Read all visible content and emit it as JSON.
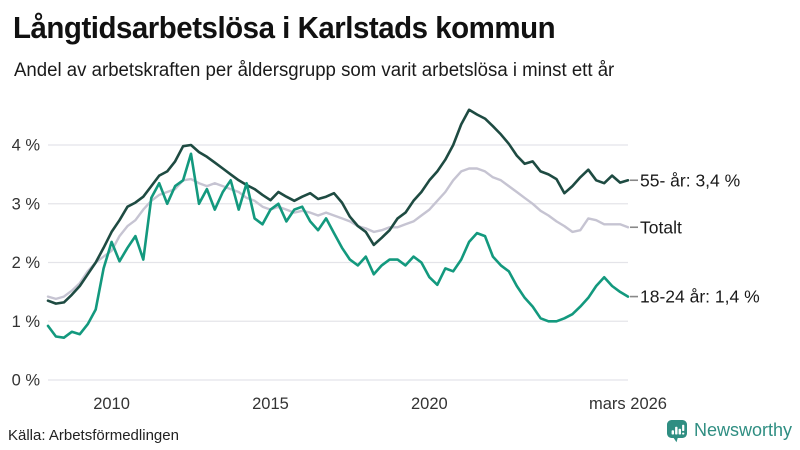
{
  "chart_data": {
    "type": "line",
    "title": "Långtidsarbetslösa i Karlstads kommun",
    "subtitle": "Andel av arbetskraften per åldersgrupp som varit arbetslösa i minst ett år",
    "source": "Källa: Arbetsförmedlingen",
    "brand": "Newsworthy",
    "xlabel": "",
    "ylabel": "",
    "x_start": 2008,
    "x_step": 0.25,
    "xlim": [
      2008,
      2026.35
    ],
    "ylim": [
      0,
      4.8
    ],
    "grid": true,
    "legend_position": "right-of-line-ends",
    "x_ticks": [
      {
        "x": 2010,
        "label": "2010"
      },
      {
        "x": 2015,
        "label": "2015"
      },
      {
        "x": 2020,
        "label": "2020"
      },
      {
        "x": 2026.25,
        "label": "mars 2026"
      }
    ],
    "y_ticks": [
      {
        "v": 0,
        "label": "0 %"
      },
      {
        "v": 1,
        "label": "1 %"
      },
      {
        "v": 2,
        "label": "2 %"
      },
      {
        "v": 3,
        "label": "3 %"
      },
      {
        "v": 4,
        "label": "4 %"
      }
    ],
    "draw_order": [
      1,
      0,
      2
    ],
    "series": [
      {
        "name": "55- år",
        "label": "55- år: 3,4 %",
        "last_value": "3,4 %",
        "color": "#1e4b42",
        "width": 2.6,
        "values": [
          1.35,
          1.3,
          1.32,
          1.45,
          1.6,
          1.8,
          2.0,
          2.25,
          2.52,
          2.72,
          2.95,
          3.02,
          3.12,
          3.3,
          3.48,
          3.55,
          3.72,
          3.98,
          4.0,
          3.88,
          3.8,
          3.7,
          3.6,
          3.5,
          3.4,
          3.32,
          3.25,
          3.15,
          3.06,
          3.2,
          3.12,
          3.05,
          3.12,
          3.18,
          3.08,
          3.12,
          3.18,
          3.02,
          2.78,
          2.62,
          2.52,
          2.3,
          2.42,
          2.55,
          2.75,
          2.85,
          3.05,
          3.2,
          3.4,
          3.55,
          3.75,
          4.0,
          4.35,
          4.6,
          4.52,
          4.45,
          4.32,
          4.18,
          4.02,
          3.82,
          3.68,
          3.72,
          3.55,
          3.5,
          3.42,
          3.18,
          3.3,
          3.45,
          3.58,
          3.4,
          3.35,
          3.48,
          3.36,
          3.4
        ]
      },
      {
        "name": "Totalt",
        "label": "Totalt",
        "last_value": "2,6 %",
        "color": "#c6c4d2",
        "width": 2.4,
        "values": [
          1.42,
          1.38,
          1.42,
          1.52,
          1.65,
          1.85,
          2.0,
          2.1,
          2.2,
          2.45,
          2.62,
          2.72,
          2.9,
          3.05,
          3.15,
          3.2,
          3.25,
          3.4,
          3.42,
          3.35,
          3.3,
          3.35,
          3.3,
          3.25,
          3.2,
          3.1,
          3.05,
          2.95,
          2.9,
          2.95,
          2.9,
          2.85,
          2.88,
          2.85,
          2.8,
          2.85,
          2.8,
          2.75,
          2.7,
          2.62,
          2.58,
          2.52,
          2.55,
          2.6,
          2.6,
          2.65,
          2.7,
          2.8,
          2.9,
          3.05,
          3.2,
          3.4,
          3.55,
          3.6,
          3.6,
          3.55,
          3.45,
          3.4,
          3.3,
          3.2,
          3.1,
          3.0,
          2.88,
          2.8,
          2.7,
          2.62,
          2.52,
          2.55,
          2.75,
          2.72,
          2.65,
          2.65,
          2.65,
          2.6
        ]
      },
      {
        "name": "18-24 år",
        "label": "18-24 år: 1,4 %",
        "last_value": "1,4 %",
        "color": "#13997e",
        "width": 2.6,
        "values": [
          0.92,
          0.74,
          0.72,
          0.82,
          0.78,
          0.95,
          1.2,
          1.9,
          2.35,
          2.02,
          2.25,
          2.45,
          2.05,
          3.1,
          3.35,
          3.0,
          3.3,
          3.4,
          3.85,
          3.0,
          3.25,
          2.9,
          3.2,
          3.4,
          2.9,
          3.35,
          2.75,
          2.65,
          2.9,
          3.0,
          2.7,
          2.9,
          2.95,
          2.7,
          2.55,
          2.75,
          2.5,
          2.25,
          2.05,
          1.95,
          2.1,
          1.8,
          1.95,
          2.05,
          2.05,
          1.95,
          2.1,
          2.0,
          1.75,
          1.62,
          1.9,
          1.85,
          2.05,
          2.35,
          2.5,
          2.45,
          2.1,
          1.95,
          1.85,
          1.6,
          1.4,
          1.25,
          1.05,
          1.0,
          1.0,
          1.05,
          1.12,
          1.25,
          1.4,
          1.6,
          1.75,
          1.6,
          1.5,
          1.42
        ]
      }
    ],
    "colors": {
      "grid": "#e4e4e9",
      "axis_text": "#333333",
      "legend_text": "#1a1a1a",
      "legend_dash": "#888888",
      "brand_teal": "#2f8e82"
    }
  }
}
